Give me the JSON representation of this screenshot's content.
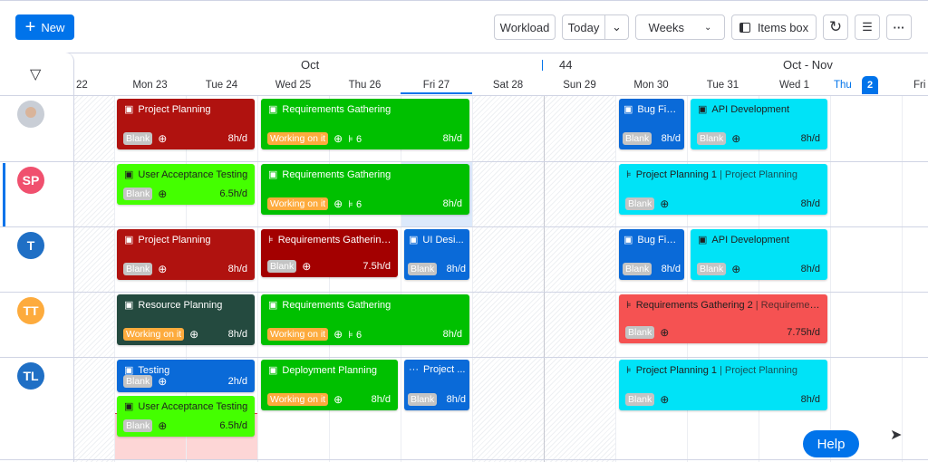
{
  "toolbar": {
    "new_label": "New",
    "workload": "Workload",
    "today": "Today",
    "view_select": "Weeks",
    "items_box": "Items box"
  },
  "header": {
    "month_left": "Oct",
    "week_number": "44",
    "month_right": "Oct  -  Nov",
    "days": [
      "22",
      "Mon 23",
      "Tue 24",
      "Wed 25",
      "Thu 26",
      "Fri 27",
      "Sat 28",
      "Sun 29",
      "Mon 30",
      "Tue 31",
      "Wed 1",
      "Thu",
      "Fri"
    ],
    "today_badge": "2"
  },
  "people": [
    {
      "initials": "",
      "color": "#8a9199"
    },
    {
      "initials": "SP",
      "color": "#f0506e"
    },
    {
      "initials": "T",
      "color": "#1f6fc5"
    },
    {
      "initials": "TT",
      "color": "#fdab3d"
    },
    {
      "initials": "TL",
      "color": "#1f6fc5"
    }
  ],
  "colors": {
    "accent": "#0073ea",
    "working": "#fdab3d",
    "blank": "#c4c4c4"
  },
  "cards": [
    {
      "title": "Project Planning",
      "status": "Blank",
      "hours": "8h/d",
      "color": "#b0120f",
      "icon": "item"
    },
    {
      "title": "Requirements Gathering",
      "status": "Working on it",
      "subitems": "6",
      "hours": "8h/d",
      "color": "#00c000",
      "icon": "item"
    },
    {
      "title": "Bug Fixi...",
      "status": "Blank",
      "hours": "8h/d",
      "color": "#0a6ad8",
      "icon": "item"
    },
    {
      "title": "API Development",
      "status": "Blank",
      "hours": "8h/d",
      "color": "#00e3f7",
      "dark": true,
      "icon": "item"
    },
    {
      "title": "User Acceptance Testing",
      "status": "Blank",
      "hours": "6.5h/d",
      "color": "#44ff00",
      "dark": true,
      "icon": "item"
    },
    {
      "title": "Requirements Gathering",
      "status": "Working on it",
      "subitems": "6",
      "hours": "8h/d",
      "color": "#00c000",
      "icon": "item"
    },
    {
      "title": "Project Planning 1",
      "subtitle": "| Project Planning",
      "status": "Blank",
      "hours": "8h/d",
      "color": "#00e3f7",
      "dark": true,
      "icon": "subitem"
    },
    {
      "title": "Project Planning",
      "status": "Blank",
      "hours": "8h/d",
      "color": "#b0120f",
      "icon": "item"
    },
    {
      "title": "Requirements Gathering ...",
      "status": "Blank",
      "hours": "7.5h/d",
      "color": "#a30000",
      "icon": "subitem"
    },
    {
      "title": "UI Desi...",
      "status": "Blank",
      "hours": "8h/d",
      "color": "#0a6ad8",
      "icon": "item"
    },
    {
      "title": "Bug Fixi...",
      "status": "Blank",
      "hours": "8h/d",
      "color": "#0a6ad8",
      "icon": "item"
    },
    {
      "title": "API Development",
      "status": "Blank",
      "hours": "8h/d",
      "color": "#00e3f7",
      "dark": true,
      "icon": "item"
    },
    {
      "title": "Resource Planning",
      "status": "Working on it",
      "hours": "8h/d",
      "color": "#244a3f",
      "icon": "item"
    },
    {
      "title": "Requirements Gathering",
      "status": "Working on it",
      "subitems": "6",
      "hours": "8h/d",
      "color": "#00c000",
      "icon": "item"
    },
    {
      "title": "Requirements Gathering 2",
      "subtitle": "| Requirement...",
      "status": "Blank",
      "hours": "7.75h/d",
      "color": "#f55252",
      "dark": true,
      "icon": "subitem"
    },
    {
      "title": "Testing",
      "status": "Blank",
      "hours": "2h/d",
      "color": "#0a6ad8",
      "icon": "item"
    },
    {
      "title": "User Acceptance Testing",
      "status": "Blank",
      "hours": "6.5h/d",
      "color": "#44ff00",
      "dark": true,
      "icon": "item"
    },
    {
      "title": "Deployment Planning",
      "status": "Working on it",
      "hours": "8h/d",
      "color": "#00c000",
      "icon": "item"
    },
    {
      "title": "Project ...",
      "status": "Blank",
      "hours": "8h/d",
      "color": "#0a6ad8",
      "icon": "more"
    },
    {
      "title": "Project Planning 1",
      "subtitle": "| Project Planning",
      "status": "Blank",
      "hours": "8h/d",
      "color": "#00e3f7",
      "dark": true,
      "icon": "subitem"
    }
  ],
  "help_label": "Help"
}
